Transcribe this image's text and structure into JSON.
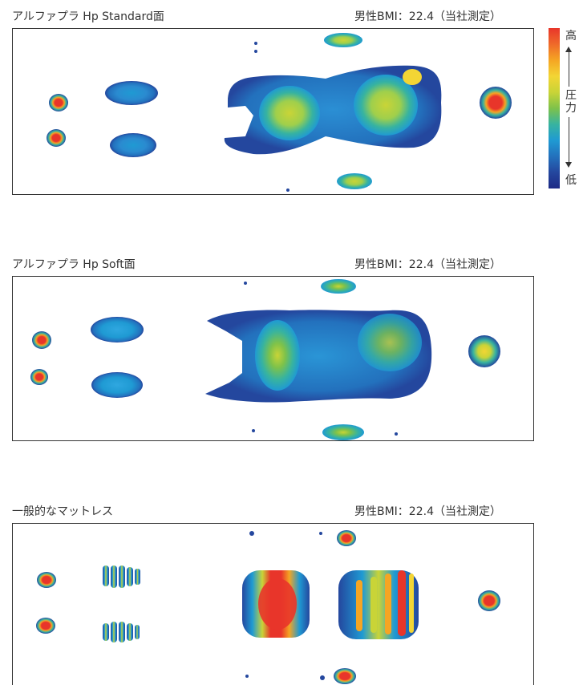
{
  "panels": [
    {
      "title": "アルファプラ Hp Standard面",
      "note": "男性BMI：22.4（当社測定）"
    },
    {
      "title": "アルファプラ Hp Soft面",
      "note": "男性BMI：22.4（当社測定）"
    },
    {
      "title": "一般的なマットレス",
      "note": "男性BMI：22.4（当社測定）"
    }
  ],
  "legend": {
    "high": "高",
    "label_top": "圧",
    "label_bottom": "力",
    "low": "低",
    "colors": [
      "#e8352a",
      "#ef6a2a",
      "#f5a523",
      "#f3d534",
      "#c9d437",
      "#7ec24a",
      "#37b3a0",
      "#1f9ad3",
      "#2371bd",
      "#24479e",
      "#1d2a85"
    ]
  }
}
